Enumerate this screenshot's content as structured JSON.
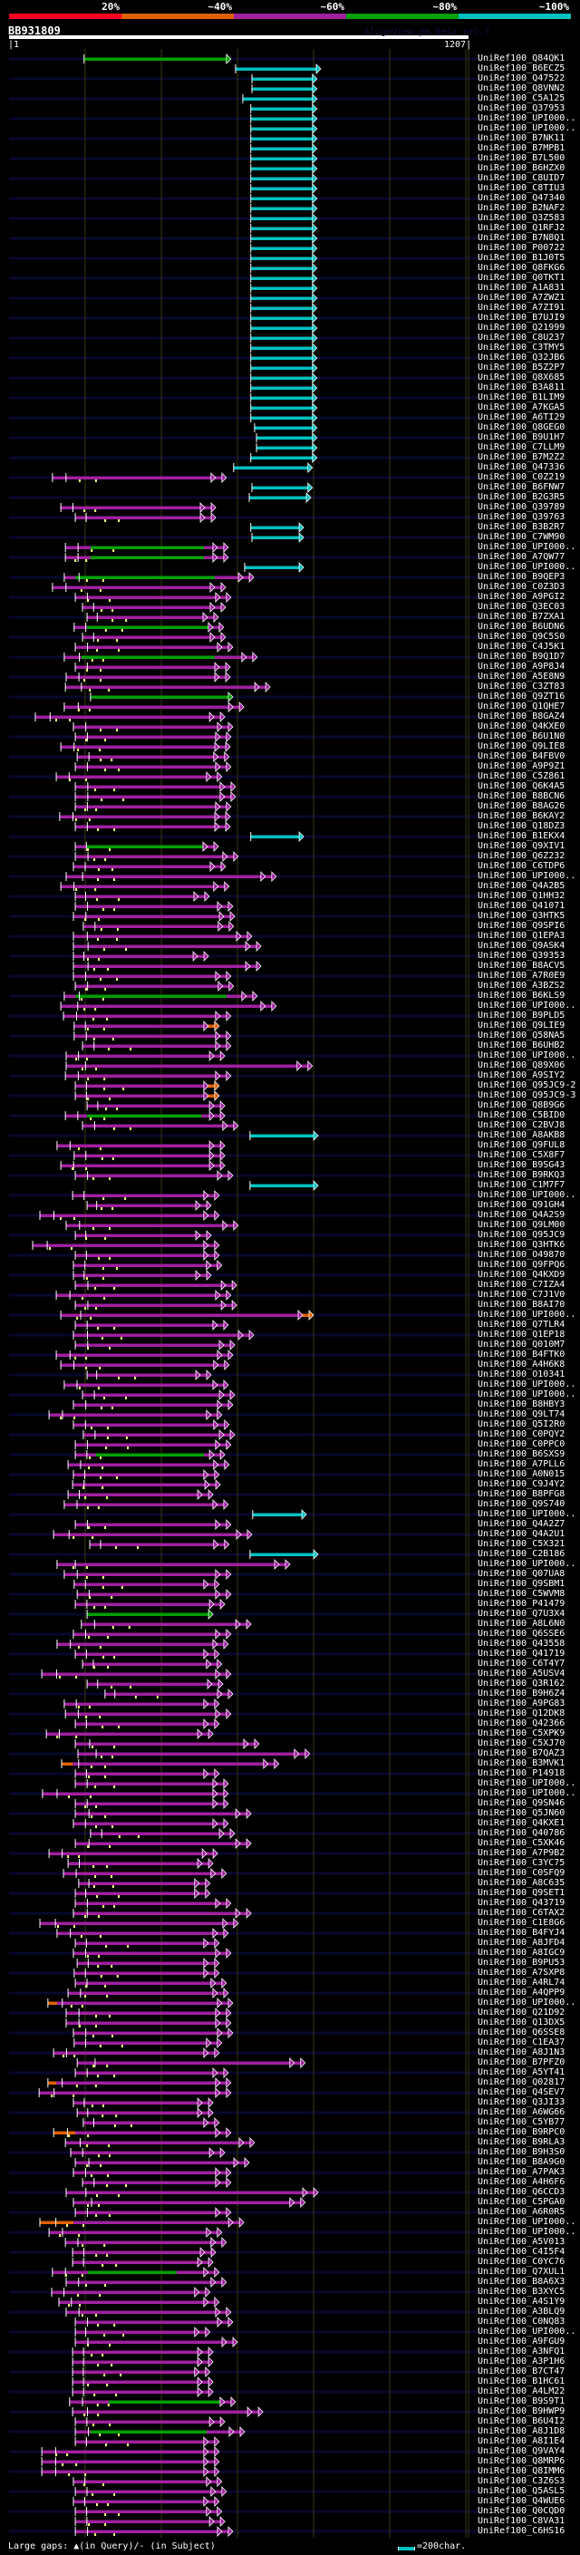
{
  "header": {
    "query_id": "BB931809",
    "watermark": "AlignView.pm Beta rel.7",
    "query_start_label": "|1",
    "query_end_label": "1207|",
    "query_length": 1207,
    "grid_interval": 200
  },
  "identity_scale": [
    {
      "label": "20%",
      "color": "#ff0020"
    },
    {
      "label": "~40%",
      "color": "#e06000"
    },
    {
      "label": "~60%",
      "color": "#a020a0"
    },
    {
      "label": "~80%",
      "color": "#00a000"
    },
    {
      "label": "~100%",
      "color": "#00c0c0"
    }
  ],
  "hit_colors": {
    "o": "#e06000",
    "m": "#a020a0",
    "g": "#00a000",
    "c": "#00c0c0"
  },
  "colors": {
    "background": "#000000",
    "row_line": "#07072e",
    "grid": "#3a3a12",
    "gap_marker": "#ffff80"
  },
  "legend": {
    "gaps_label": "Large gaps: ▲(in Query)/- (in Subject)",
    "scale_label": "=200char."
  },
  "row_format": [
    "label",
    "identity_class",
    "q_start",
    "q_end",
    "segment_class",
    "segment_start",
    "segment_end"
  ],
  "rows": [
    [
      "UniRef100_Q84QK1",
      "g",
      197,
      571
    ],
    [
      "UniRef100_B6ECZ5",
      "c",
      595,
      807
    ],
    [
      "UniRef100_Q47522",
      "c",
      638,
      797
    ],
    [
      "UniRef100_Q8VNN2",
      "c",
      638,
      797
    ],
    [
      "UniRef100_C5A125",
      "c",
      614,
      797
    ],
    [
      "UniRef100_Q37953",
      "c",
      635,
      797
    ],
    [
      "UniRef100_UPI000..",
      "c",
      635,
      797
    ],
    [
      "UniRef100_UPI000..",
      "c",
      635,
      797
    ],
    [
      "UniRef100_B7NK11",
      "c",
      635,
      797
    ],
    [
      "UniRef100_B7MPB1",
      "c",
      635,
      797
    ],
    [
      "UniRef100_B7L500",
      "c",
      635,
      797
    ],
    [
      "UniRef100_B6HZX0",
      "c",
      635,
      797
    ],
    [
      "UniRef100_C8UID7",
      "c",
      635,
      797
    ],
    [
      "UniRef100_C8TIU3",
      "c",
      635,
      797
    ],
    [
      "UniRef100_Q47340",
      "c",
      635,
      797
    ],
    [
      "UniRef100_B2NAF2",
      "c",
      635,
      797
    ],
    [
      "UniRef100_Q3Z583",
      "c",
      635,
      797
    ],
    [
      "UniRef100_Q1RFJ2",
      "c",
      635,
      797
    ],
    [
      "UniRef100_B7N8Q1",
      "c",
      635,
      797
    ],
    [
      "UniRef100_P00722",
      "c",
      635,
      797
    ],
    [
      "UniRef100_B1J0T5",
      "c",
      635,
      797
    ],
    [
      "UniRef100_Q8FKG6",
      "c",
      635,
      797
    ],
    [
      "UniRef100_Q0TKT1",
      "c",
      635,
      797
    ],
    [
      "UniRef100_A1A831",
      "c",
      635,
      797
    ],
    [
      "UniRef100_A7ZWZ1",
      "c",
      635,
      797
    ],
    [
      "UniRef100_A7ZI91",
      "c",
      635,
      797
    ],
    [
      "UniRef100_B7UJI9",
      "c",
      635,
      797
    ],
    [
      "UniRef100_Q21999",
      "c",
      635,
      797
    ],
    [
      "UniRef100_C8U237",
      "c",
      635,
      797
    ],
    [
      "UniRef100_C3TMY5",
      "c",
      635,
      797
    ],
    [
      "UniRef100_Q32JB6",
      "c",
      635,
      797
    ],
    [
      "UniRef100_B5Z2P7",
      "c",
      635,
      797
    ],
    [
      "UniRef100_Q8X685",
      "c",
      635,
      797
    ],
    [
      "UniRef100_B3A811",
      "c",
      635,
      797
    ],
    [
      "UniRef100_B1LIM9",
      "c",
      635,
      797
    ],
    [
      "UniRef100_A7KGA5",
      "c",
      635,
      797
    ],
    [
      "UniRef100_A6TI29",
      "c",
      635,
      797
    ],
    [
      "UniRef100_Q8GEG0",
      "c",
      645,
      797
    ],
    [
      "UniRef100_B9U1H7",
      "c",
      650,
      797
    ],
    [
      "UniRef100_C7LLM9",
      "c",
      650,
      797
    ],
    [
      "UniRef100_B7M2Z2",
      "c",
      635,
      797
    ],
    [
      "UniRef100_Q47336",
      "c",
      590,
      785
    ],
    [
      "UniRef100_C0Z219",
      "m",
      114,
      559
    ],
    [
      "UniRef100_B6FNW7",
      "c",
      638,
      785
    ],
    [
      "UniRef100_B2G3R5",
      "c",
      631,
      781
    ],
    [
      "UniRef100_Q39789",
      "m",
      136,
      531
    ],
    [
      "UniRef100_Q39763",
      "m",
      174,
      531
    ],
    [
      "UniRef100_B3B2R7",
      "c",
      635,
      762
    ],
    [
      "UniRef100_C7WM90",
      "c",
      638,
      762
    ],
    [
      "UniRef100_UPI000..",
      "m",
      148,
      564,
      "g",
      214,
      512
    ],
    [
      "UniRef100_A7QW77",
      "m",
      148,
      564,
      "g",
      214,
      512
    ],
    [
      "UniRef100_UPI000..",
      "c",
      619,
      762
    ],
    [
      "UniRef100_B9QEP3",
      "m",
      145,
      631,
      "g",
      174,
      540
    ],
    [
      "UniRef100_C0Z3D3",
      "m",
      114,
      557
    ],
    [
      "UniRef100_A9PGI2",
      "m",
      174,
      571
    ],
    [
      "UniRef100_Q3EC03",
      "m",
      193,
      557
    ],
    [
      "UniRef100_B7ZXA1",
      "m",
      205,
      538
    ],
    [
      "UniRef100_B6UDN6",
      "m",
      171,
      552,
      "g",
      205,
      536
    ],
    [
      "UniRef100_Q9C5S0",
      "m",
      193,
      557
    ],
    [
      "UniRef100_C4J5K1",
      "m",
      174,
      576
    ],
    [
      "UniRef100_B9Q1D7",
      "m",
      145,
      640,
      "g",
      190,
      540
    ],
    [
      "UniRef100_A9P8J4",
      "m",
      174,
      569
    ],
    [
      "UniRef100_A5E8N9",
      "m",
      150,
      569
    ],
    [
      "UniRef100_C3ZT83",
      "m",
      148,
      674
    ],
    [
      "UniRef100_Q9ZT16",
      "g",
      214,
      576
    ],
    [
      "UniRef100_Q1QHE7",
      "m",
      145,
      605
    ],
    [
      "UniRef100_B8GAZ4",
      "m",
      69,
      555
    ],
    [
      "UniRef100_Q4KXE0",
      "m",
      169,
      576
    ],
    [
      "UniRef100_B6U1N0",
      "m",
      174,
      571
    ],
    [
      "UniRef100_Q9LIE8",
      "m",
      136,
      569
    ],
    [
      "UniRef100_B4FBV0",
      "m",
      179,
      566
    ],
    [
      "UniRef100_A9P9Z1",
      "m",
      174,
      571
    ],
    [
      "UniRef100_C5Z861",
      "m",
      124,
      547
    ],
    [
      "UniRef100_Q6K4A5",
      "m",
      174,
      583
    ],
    [
      "UniRef100_B8BCN6",
      "m",
      174,
      583
    ],
    [
      "UniRef100_B8AG26",
      "m",
      174,
      571
    ],
    [
      "UniRef100_B6KAY2",
      "m",
      133,
      569
    ],
    [
      "UniRef100_Q18DZ3",
      "m",
      174,
      569
    ],
    [
      "UniRef100_B1EKX4",
      "c",
      635,
      762
    ],
    [
      "UniRef100_Q9XIV1",
      "m",
      174,
      538,
      "g",
      205,
      516
    ],
    [
      "UniRef100_Q6Z232",
      "m",
      174,
      590
    ],
    [
      "UniRef100_C6TDP6",
      "m",
      169,
      557
    ],
    [
      "UniRef100_UPI000..",
      "m",
      150,
      690
    ],
    [
      "UniRef100_Q4A2B5",
      "m",
      136,
      566
    ],
    [
      "UniRef100_Q1HH32",
      "m",
      174,
      514
    ],
    [
      "UniRef100_Q41071",
      "m",
      174,
      576
    ],
    [
      "UniRef100_Q3HTK5",
      "m",
      169,
      581
    ],
    [
      "UniRef100_Q9SPI6",
      "m",
      195,
      578
    ],
    [
      "UniRef100_Q1EPA3",
      "m",
      169,
      626
    ],
    [
      "UniRef100_Q9ASK4",
      "m",
      169,
      650
    ],
    [
      "UniRef100_Q39353",
      "m",
      169,
      512
    ],
    [
      "UniRef100_B8ACV5",
      "m",
      169,
      650
    ],
    [
      "UniRef100_A7R0E9",
      "m",
      169,
      571
    ],
    [
      "UniRef100_A3BZS2",
      "m",
      174,
      578
    ],
    [
      "UniRef100_B6KLS9",
      "m",
      145,
      640,
      "g",
      174,
      571
    ],
    [
      "UniRef100_UPI000..",
      "m",
      136,
      690
    ],
    [
      "UniRef100_B9PLD5",
      "m",
      143,
      571
    ],
    [
      "UniRef100_Q9LIE9",
      "m",
      171,
      540,
      "o",
      512,
      540
    ],
    [
      "UniRef100_Q58NA5",
      "m",
      171,
      571
    ],
    [
      "UniRef100_B6UHB2",
      "m",
      193,
      571
    ],
    [
      "UniRef100_UPI000..",
      "m",
      150,
      555
    ],
    [
      "UniRef100_Q89X06",
      "m",
      150,
      785
    ],
    [
      "UniRef100_A9SIY2",
      "m",
      148,
      571
    ],
    [
      "UniRef100_Q95JC9-2",
      "m",
      174,
      540,
      "o",
      512,
      540
    ],
    [
      "UniRef100_Q95JC9-3",
      "m",
      174,
      540,
      "o",
      512,
      540
    ],
    [
      "UniRef100_Q8B9G6",
      "m",
      205,
      555
    ],
    [
      "UniRef100_C5BID0",
      "m",
      148,
      555,
      "g",
      205,
      505
    ],
    [
      "UniRef100_C2BVJ8",
      "m",
      193,
      590
    ],
    [
      "UniRef100_A8AKB8",
      "c",
      633,
      800
    ],
    [
      "UniRef100_Q9FUL8",
      "m",
      126,
      555
    ],
    [
      "UniRef100_C5X8F7",
      "m",
      171,
      555
    ],
    [
      "UniRef100_B9SG43",
      "m",
      136,
      555
    ],
    [
      "UniRef100_B9RKQ3",
      "m",
      174,
      576
    ],
    [
      "UniRef100_C1M7F7",
      "c",
      633,
      800
    ],
    [
      "UniRef100_UPI000..",
      "m",
      167,
      540
    ],
    [
      "UniRef100_Q91GH4",
      "m",
      205,
      519
    ],
    [
      "UniRef100_Q4A2S9",
      "m",
      81,
      540
    ],
    [
      "UniRef100_Q9LM00",
      "m",
      150,
      590
    ],
    [
      "UniRef100_Q95JC9",
      "m",
      174,
      519
    ],
    [
      "UniRef100_Q3HTK6",
      "m",
      62,
      540
    ],
    [
      "UniRef100_O49870",
      "m",
      174,
      540
    ],
    [
      "UniRef100_Q9FPQ6",
      "m",
      169,
      547
    ],
    [
      "UniRef100_Q4KXD9",
      "m",
      169,
      519
    ],
    [
      "UniRef100_C7IZA4",
      "m",
      174,
      586
    ],
    [
      "UniRef100_C7J1V0",
      "m",
      124,
      571
    ],
    [
      "UniRef100_B8AI70",
      "m",
      174,
      586
    ],
    [
      "UniRef100_UPI000..",
      "m",
      136,
      788,
      "o",
      762,
      788
    ],
    [
      "UniRef100_Q7TLR4",
      "m",
      174,
      564
    ],
    [
      "UniRef100_Q1EP18",
      "m",
      169,
      631
    ],
    [
      "UniRef100_Q010M7",
      "m",
      174,
      581
    ],
    [
      "UniRef100_B4FTK0",
      "m",
      124,
      576
    ],
    [
      "UniRef100_A4H6K8",
      "m",
      136,
      566
    ],
    [
      "UniRef100_O10341",
      "m",
      205,
      519
    ],
    [
      "UniRef100_UPI000..",
      "m",
      145,
      564
    ],
    [
      "UniRef100_UPI000..",
      "m",
      193,
      581
    ],
    [
      "UniRef100_B8HBY3",
      "m",
      169,
      576
    ],
    [
      "UniRef100_Q9LT74",
      "m",
      105,
      547
    ],
    [
      "UniRef100_Q5I2R0",
      "m",
      169,
      566
    ],
    [
      "UniRef100_C0PQY2",
      "m",
      195,
      581
    ],
    [
      "UniRef100_C0PPC0",
      "m",
      174,
      571
    ],
    [
      "UniRef100_B6SXS9",
      "m",
      174,
      555,
      "g",
      228,
      512
    ],
    [
      "UniRef100_A7PLL6",
      "m",
      155,
      566
    ],
    [
      "UniRef100_A0N015",
      "m",
      169,
      540
    ],
    [
      "UniRef100_C9J4Y2",
      "m",
      167,
      543
    ],
    [
      "UniRef100_B8PFG8",
      "m",
      155,
      524
    ],
    [
      "UniRef100_Q9S740",
      "m",
      145,
      564
    ],
    [
      "UniRef100_UPI000..",
      "c",
      640,
      769
    ],
    [
      "UniRef100_Q4A2Z7",
      "m",
      174,
      571
    ],
    [
      "UniRef100_Q4A2U1",
      "m",
      117,
      626
    ],
    [
      "UniRef100_C5X321",
      "m",
      212,
      566
    ],
    [
      "UniRef100_C2B186",
      "c",
      633,
      800
    ],
    [
      "UniRef100_UPI000..",
      "m",
      126,
      726
    ],
    [
      "UniRef100_Q07UA8",
      "m",
      145,
      571
    ],
    [
      "UniRef100_Q9SBM1",
      "m",
      171,
      540
    ],
    [
      "UniRef100_C5WVM8",
      "m",
      179,
      571
    ],
    [
      "UniRef100_P41479",
      "m",
      174,
      555
    ],
    [
      "UniRef100_Q7U3X4",
      "g",
      205,
      524
    ],
    [
      "UniRef100_A8L6N0",
      "m",
      190,
      624
    ],
    [
      "UniRef100_Q6SSE6",
      "m",
      169,
      571
    ],
    [
      "UniRef100_Q43558",
      "m",
      126,
      564
    ],
    [
      "UniRef100_Q41719",
      "m",
      174,
      540
    ],
    [
      "UniRef100_C6T4Y7",
      "m",
      193,
      547
    ],
    [
      "UniRef100_A5USV4",
      "m",
      86,
      571
    ],
    [
      "UniRef100_Q3R162",
      "m",
      205,
      550
    ],
    [
      "UniRef100_B9H6Z4",
      "m",
      252,
      576
    ],
    [
      "UniRef100_A9PG83",
      "m",
      145,
      540
    ],
    [
      "UniRef100_Q12DK8",
      "m",
      148,
      571
    ],
    [
      "UniRef100_Q42366",
      "m",
      174,
      540
    ],
    [
      "UniRef100_C5XPK9",
      "m",
      98,
      524
    ],
    [
      "UniRef100_C5XJ70",
      "m",
      174,
      645
    ],
    [
      "UniRef100_B7QAZ3",
      "m",
      181,
      778
    ],
    [
      "UniRef100_B3MVK1",
      "m",
      138,
      697,
      "o",
      138,
      167
    ],
    [
      "UniRef100_P14918",
      "m",
      174,
      540
    ],
    [
      "UniRef100_UPI000..",
      "m",
      174,
      564
    ],
    [
      "UniRef100_UPI000..",
      "m",
      88,
      564
    ],
    [
      "UniRef100_Q9SN46",
      "m",
      174,
      564
    ],
    [
      "UniRef100_Q5JN60",
      "m",
      174,
      624
    ],
    [
      "UniRef100_Q4KXE1",
      "m",
      169,
      564
    ],
    [
      "UniRef100_Q40786",
      "m",
      214,
      581
    ],
    [
      "UniRef100_C5XK46",
      "m",
      174,
      624
    ],
    [
      "UniRef100_A7P9B2",
      "m",
      105,
      536
    ],
    [
      "UniRef100_C3YC75",
      "m",
      155,
      524
    ],
    [
      "UniRef100_C0SFQ9",
      "m",
      143,
      559
    ],
    [
      "UniRef100_A8C635",
      "m",
      183,
      516
    ],
    [
      "UniRef100_Q9SET1",
      "m",
      174,
      516
    ],
    [
      "UniRef100_Q43719",
      "m",
      174,
      571
    ],
    [
      "UniRef100_C6TAX2",
      "m",
      169,
      624
    ],
    [
      "UniRef100_C1E8G6",
      "m",
      81,
      590
    ],
    [
      "UniRef100_B4FYJ4",
      "m",
      126,
      564
    ],
    [
      "UniRef100_A8JFD4",
      "m",
      174,
      540
    ],
    [
      "UniRef100_A8IGC9",
      "m",
      169,
      571
    ],
    [
      "UniRef100_B9PU53",
      "m",
      179,
      540
    ],
    [
      "UniRef100_A7SXP8",
      "m",
      171,
      540
    ],
    [
      "UniRef100_A4RL74",
      "m",
      174,
      559
    ],
    [
      "UniRef100_A4QPP9",
      "m",
      155,
      564
    ],
    [
      "UniRef100_UPI000..",
      "m",
      102,
      576,
      "o",
      102,
      126
    ],
    [
      "UniRef100_Q21D92",
      "m",
      150,
      571
    ],
    [
      "UniRef100_Q13DX5",
      "m",
      150,
      571
    ],
    [
      "UniRef100_Q6SSE8",
      "m",
      169,
      576
    ],
    [
      "UniRef100_C1EA37",
      "m",
      171,
      547
    ],
    [
      "UniRef100_A8J1N3",
      "m",
      117,
      540
    ],
    [
      "UniRef100_B7PFZ0",
      "m",
      179,
      766
    ],
    [
      "UniRef100_A5YT41",
      "m",
      174,
      564
    ],
    [
      "UniRef100_Q02817",
      "m",
      102,
      571,
      "o",
      102,
      124
    ],
    [
      "UniRef100_Q4SEV7",
      "m",
      79,
      571
    ],
    [
      "UniRef100_Q3JI33",
      "m",
      169,
      524
    ],
    [
      "UniRef100_A6WG66",
      "m",
      179,
      524
    ],
    [
      "UniRef100_C5YB77",
      "m",
      195,
      540
    ],
    [
      "UniRef100_B9RPC0",
      "m",
      117,
      571,
      "o",
      117,
      174
    ],
    [
      "UniRef100_B9RLA3",
      "m",
      148,
      633
    ],
    [
      "UniRef100_B9H3S0",
      "m",
      162,
      555
    ],
    [
      "UniRef100_B8A9G0",
      "m",
      174,
      619
    ],
    [
      "UniRef100_A7PAK3",
      "m",
      169,
      571
    ],
    [
      "UniRef100_A4H6F6",
      "m",
      193,
      571
    ],
    [
      "UniRef100_Q6CCD3",
      "m",
      150,
      800
    ],
    [
      "UniRef100_C5PGA0",
      "m",
      169,
      766
    ],
    [
      "UniRef100_A6R0R5",
      "m",
      174,
      571
    ],
    [
      "UniRef100_UPI000..",
      "m",
      81,
      605,
      "o",
      81,
      169
    ],
    [
      "UniRef100_UPI000..",
      "m",
      105,
      547
    ],
    [
      "UniRef100_A5V013",
      "m",
      148,
      559
    ],
    [
      "UniRef100_C4I5F4",
      "m",
      167,
      531
    ],
    [
      "UniRef100_C0YC76",
      "m",
      167,
      524
    ],
    [
      "UniRef100_Q7XUL1",
      "m",
      114,
      540,
      "g",
      207,
      440
    ],
    [
      "UniRef100_B8A6X3",
      "m",
      150,
      559
    ],
    [
      "UniRef100_B3XYC5",
      "m",
      112,
      516
    ],
    [
      "UniRef100_A4S1Y9",
      "m",
      131,
      540
    ],
    [
      "UniRef100_A3BLQ9",
      "m",
      150,
      571
    ],
    [
      "UniRef100_C0NQ83",
      "m",
      174,
      576
    ],
    [
      "UniRef100_UPI000..",
      "m",
      174,
      516
    ],
    [
      "UniRef100_A9FGU9",
      "m",
      174,
      588
    ],
    [
      "UniRef100_A3NFQ1",
      "m",
      167,
      524
    ],
    [
      "UniRef100_A3P1H6",
      "m",
      167,
      524
    ],
    [
      "UniRef100_B7CT47",
      "m",
      167,
      516
    ],
    [
      "UniRef100_B1HC61",
      "m",
      167,
      524
    ],
    [
      "UniRef100_A4LM22",
      "m",
      167,
      524
    ],
    [
      "UniRef100_B9S9T1",
      "m",
      159,
      583,
      "g",
      262,
      559
    ],
    [
      "UniRef100_B9HWP9",
      "m",
      167,
      655
    ],
    [
      "UniRef100_B6U4I2",
      "m",
      174,
      555
    ],
    [
      "UniRef100_A8J1D8",
      "m",
      174,
      607,
      "g",
      214,
      519
    ],
    [
      "UniRef100_A8I1E4",
      "m",
      174,
      540
    ],
    [
      "UniRef100_Q9VAY4",
      "m",
      86,
      540
    ],
    [
      "UniRef100_Q8MRP6",
      "m",
      86,
      540
    ],
    [
      "UniRef100_Q8IMM6",
      "m",
      86,
      540
    ],
    [
      "UniRef100_C3Z6S3",
      "m",
      169,
      547
    ],
    [
      "UniRef100_Q5ASL5",
      "m",
      174,
      559
    ],
    [
      "UniRef100_Q4WUE6",
      "m",
      169,
      540
    ],
    [
      "UniRef100_Q0CQD0",
      "m",
      174,
      547
    ],
    [
      "UniRef100_C8VA31",
      "m",
      174,
      555
    ],
    [
      "UniRef100_C6HS16",
      "m",
      174,
      576
    ]
  ]
}
